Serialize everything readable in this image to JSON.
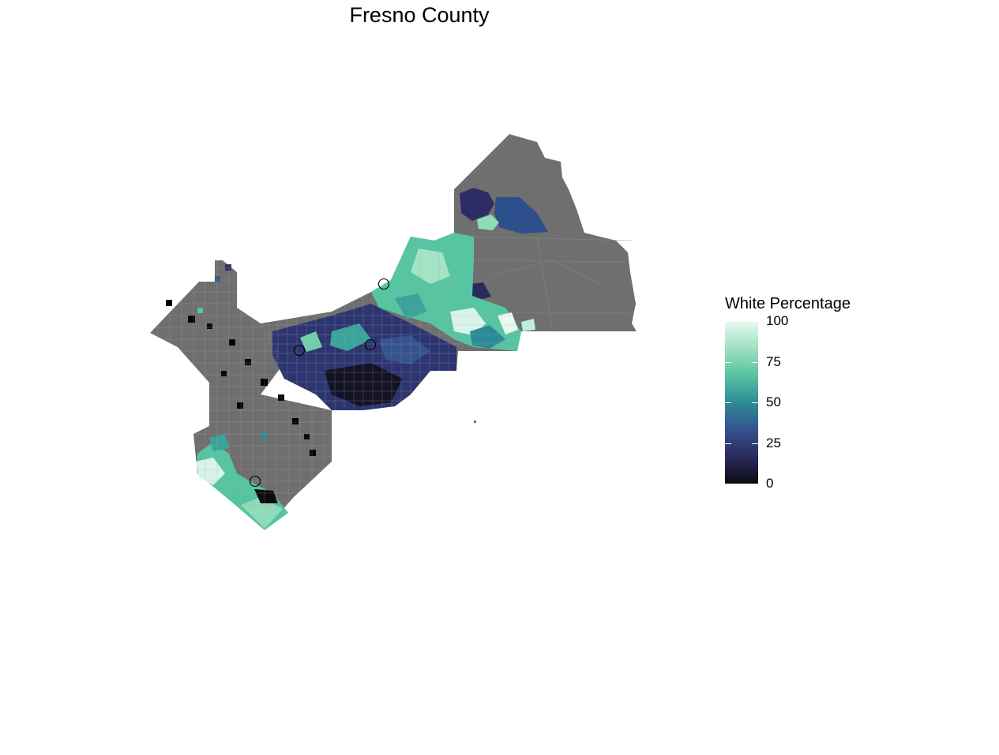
{
  "title": "Fresno County",
  "legend": {
    "title": "White Percentage",
    "ticks": [
      "100",
      "75",
      "50",
      "25",
      "0"
    ],
    "tick_values": [
      100,
      75,
      50,
      25,
      0
    ],
    "range": [
      0,
      100
    ],
    "gradient": [
      "#0c0b10",
      "#2b2b5e",
      "#35538f",
      "#2f8a98",
      "#56c4a0",
      "#9fe0c2",
      "#e9f9f2"
    ]
  },
  "map": {
    "region": "Fresno County",
    "no_data_color": "#6f6f6f",
    "background": "#ffffff"
  }
}
